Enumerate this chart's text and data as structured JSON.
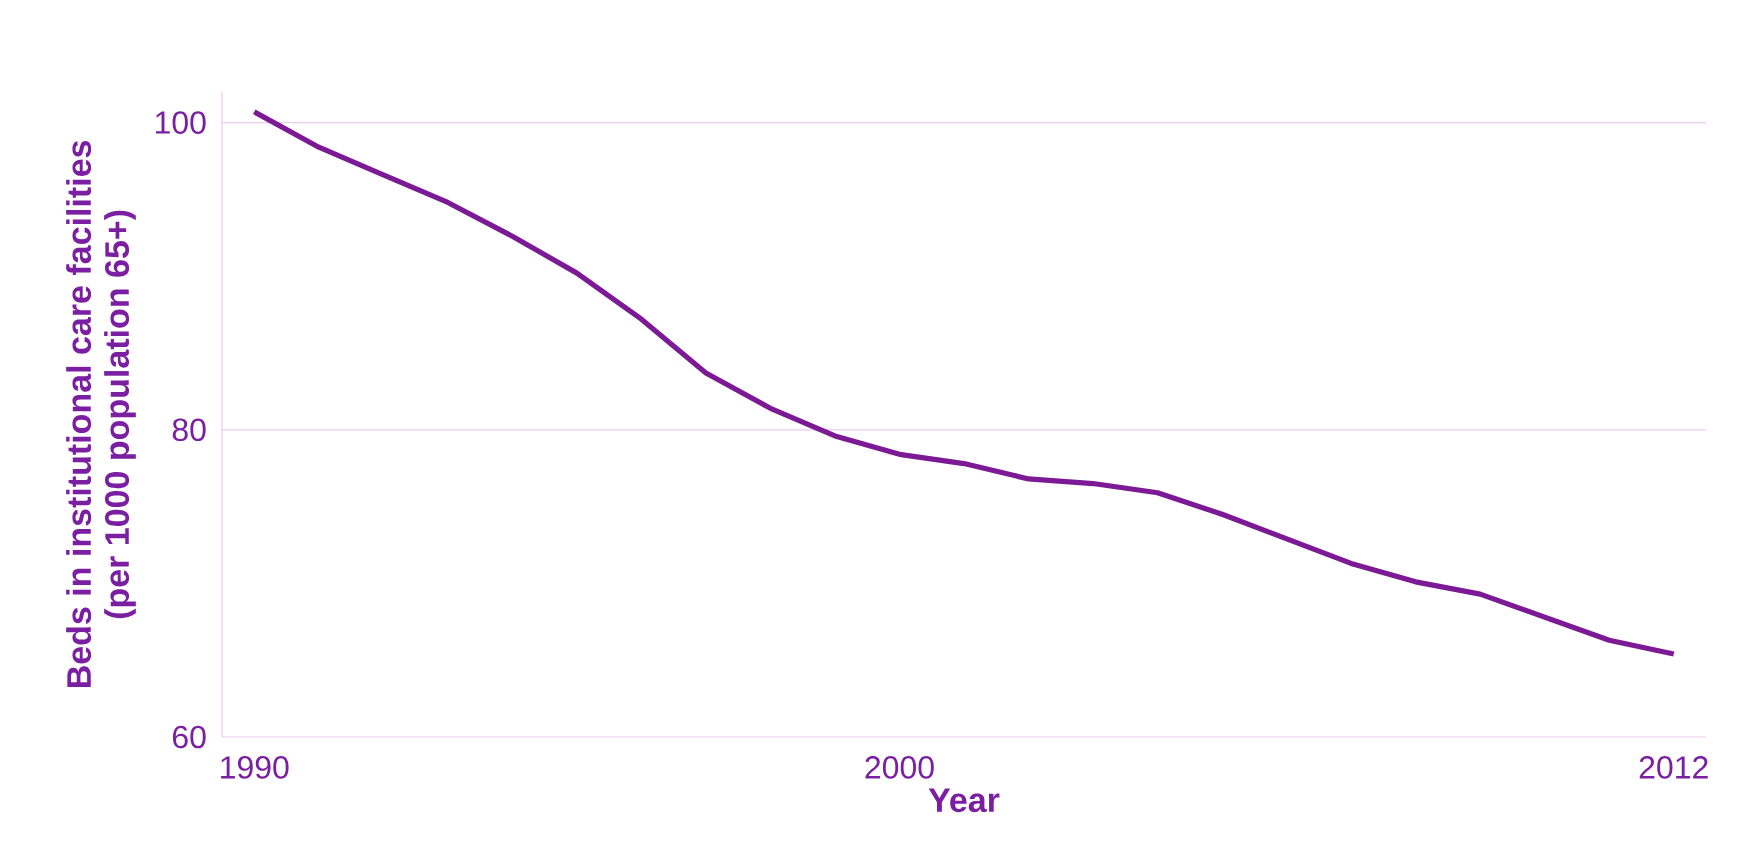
{
  "chart_data": {
    "type": "line",
    "xlabel": "Year",
    "ylabel": "Beds in institutional care facilities\n(per 1000 population 65+)",
    "x": [
      1990,
      1991,
      1992,
      1993,
      1994,
      1995,
      1996,
      1997,
      1998,
      1999,
      2000,
      2001,
      2002,
      2003,
      2004,
      2005,
      2006,
      2007,
      2008,
      2009,
      2010,
      2011,
      2012
    ],
    "series": [
      {
        "color": "#7b1a94",
        "values": [
          100.7,
          98.4,
          96.6,
          94.8,
          92.6,
          90.2,
          87.2,
          83.7,
          81.4,
          79.6,
          78.4,
          77.8,
          76.8,
          76.5,
          75.9,
          74.5,
          72.9,
          71.3,
          70.1,
          69.3,
          67.8,
          66.3,
          65.4
        ]
      }
    ],
    "xlim": [
      1989.5,
      2012.5
    ],
    "ylim": [
      60,
      102
    ],
    "xticks": [
      1990,
      2000,
      2012
    ],
    "yticks": [
      60,
      80,
      100
    ],
    "grid": "y",
    "marker": "none",
    "line_style": "solid"
  }
}
